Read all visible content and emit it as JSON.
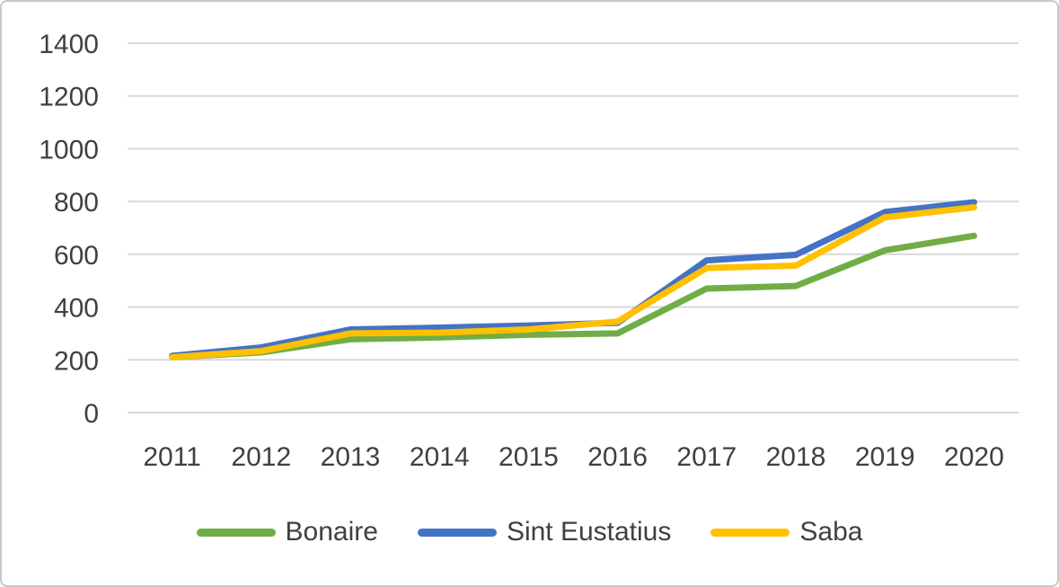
{
  "chart_data": {
    "type": "line",
    "categories": [
      "2011",
      "2012",
      "2013",
      "2014",
      "2015",
      "2016",
      "2017",
      "2018",
      "2019",
      "2020"
    ],
    "series": [
      {
        "name": "Bonaire",
        "color": "#70AD47",
        "values": [
          210,
          228,
          278,
          285,
          295,
          300,
          470,
          480,
          615,
          670
        ]
      },
      {
        "name": "Sint Eustatius",
        "color": "#4472C4",
        "values": [
          215,
          247,
          315,
          322,
          330,
          340,
          577,
          598,
          760,
          797
        ]
      },
      {
        "name": "Saba",
        "color": "#FFC000",
        "values": [
          210,
          233,
          300,
          303,
          315,
          345,
          548,
          557,
          740,
          778
        ]
      }
    ],
    "title": "",
    "xlabel": "",
    "ylabel": "",
    "ylim": [
      0,
      1400
    ],
    "yticks": [
      0,
      200,
      400,
      600,
      800,
      1000,
      1200,
      1400
    ],
    "grid": true,
    "legend_position": "bottom",
    "colors": {
      "gridline": "#D9D9D9",
      "axis_text": "#404040",
      "frame_border": "#C9C9C9",
      "background": "#FFFFFF"
    }
  }
}
